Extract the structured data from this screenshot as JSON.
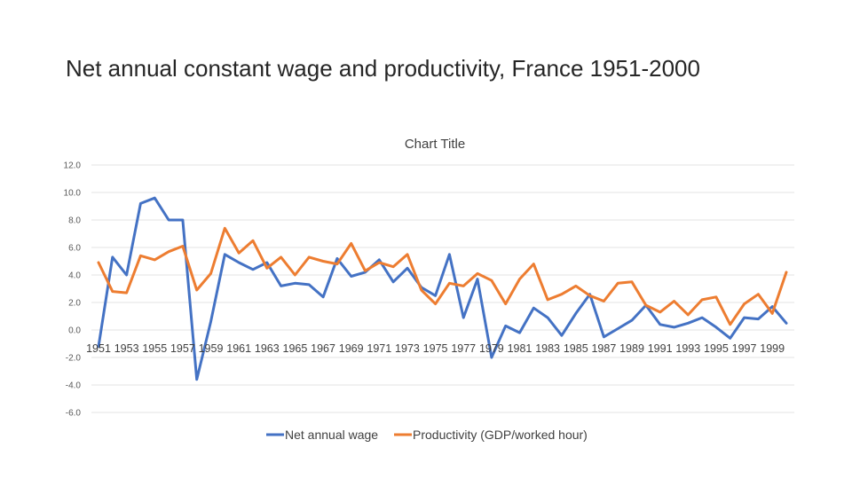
{
  "slide": {
    "title": "Net annual constant wage and productivity, France 1951-2000"
  },
  "chart_data": {
    "type": "line",
    "title": "Chart Title",
    "xlabel": "",
    "ylabel": "",
    "ylim": [
      -6,
      12
    ],
    "y_tick_step": 2,
    "y_tick_labels": [
      "12.0",
      "10.0",
      "8.0",
      "6.0",
      "4.0",
      "2.0",
      "0.0",
      "-2.0",
      "-4.0",
      "-6.0"
    ],
    "grid": true,
    "legend_position": "bottom",
    "x": [
      1951,
      1952,
      1953,
      1954,
      1955,
      1956,
      1957,
      1958,
      1959,
      1960,
      1961,
      1962,
      1963,
      1964,
      1965,
      1966,
      1967,
      1968,
      1969,
      1970,
      1971,
      1972,
      1973,
      1974,
      1975,
      1976,
      1977,
      1978,
      1979,
      1980,
      1981,
      1982,
      1983,
      1984,
      1985,
      1986,
      1987,
      1988,
      1989,
      1990,
      1991,
      1992,
      1993,
      1994,
      1995,
      1996,
      1997,
      1998,
      1999,
      2000
    ],
    "x_tick_labels": [
      "1951",
      "1953",
      "1955",
      "1957",
      "1959",
      "1961",
      "1963",
      "1965",
      "1967",
      "1969",
      "1971",
      "1973",
      "1975",
      "1977",
      "1979",
      "1981",
      "1983",
      "1985",
      "1987",
      "1989",
      "1991",
      "1993",
      "1995",
      "1997",
      "1999"
    ],
    "series": [
      {
        "name": "Net annual wage",
        "color": "#4472C4",
        "values": [
          -1.2,
          5.3,
          4.0,
          9.2,
          9.6,
          8.0,
          8.0,
          -3.6,
          0.6,
          5.5,
          4.9,
          4.4,
          4.9,
          3.2,
          3.4,
          3.3,
          2.4,
          5.2,
          3.9,
          4.2,
          5.1,
          3.5,
          4.5,
          3.1,
          2.5,
          5.5,
          0.9,
          3.7,
          -2.0,
          0.3,
          -0.2,
          1.6,
          0.9,
          -0.4,
          1.2,
          2.6,
          -0.5,
          0.1,
          0.7,
          1.8,
          0.4,
          0.2,
          0.5,
          0.9,
          0.2,
          -0.6,
          0.9,
          0.8,
          1.7,
          0.5
        ]
      },
      {
        "name": "Productivity (GDP/worked hour)",
        "color": "#ED7D31",
        "values": [
          4.9,
          2.8,
          2.7,
          5.4,
          5.1,
          5.7,
          6.1,
          2.9,
          4.1,
          7.4,
          5.6,
          6.5,
          4.5,
          5.3,
          4.0,
          5.3,
          5.0,
          4.8,
          6.3,
          4.3,
          4.9,
          4.6,
          5.5,
          2.9,
          1.9,
          3.4,
          3.2,
          4.1,
          3.6,
          1.9,
          3.7,
          4.8,
          2.2,
          2.6,
          3.2,
          2.5,
          2.1,
          3.4,
          3.5,
          1.8,
          1.3,
          2.1,
          1.1,
          2.2,
          2.4,
          0.4,
          1.9,
          2.6,
          1.2,
          4.2
        ]
      }
    ]
  }
}
